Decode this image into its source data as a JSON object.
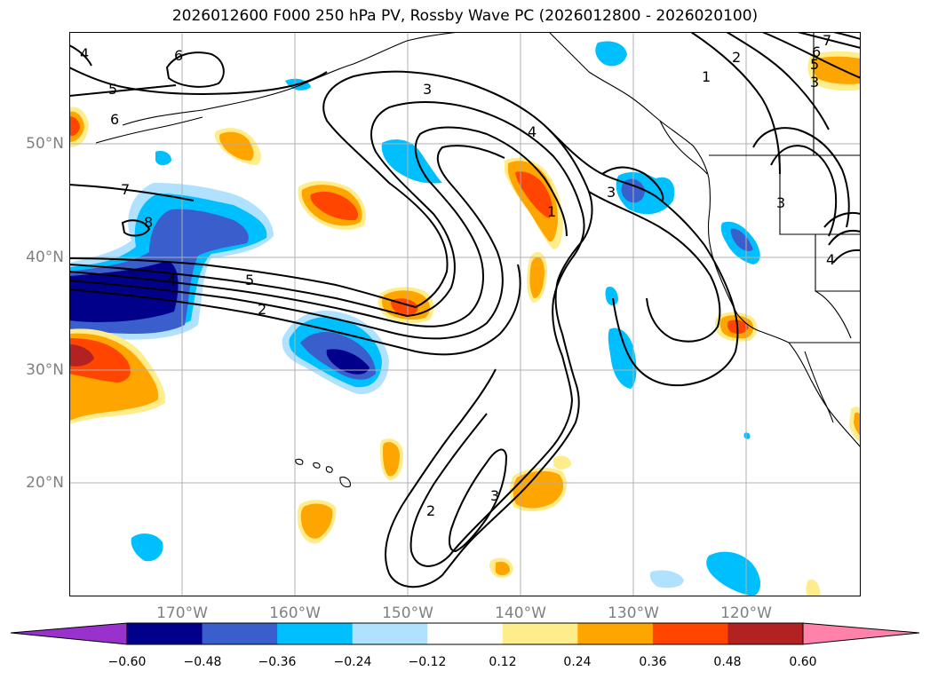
{
  "title": "2026012600 F000 250 hPa PV, Rossby Wave PC (2026012800 - 2026020100)",
  "lat_labels": [
    "50°N",
    "40°N",
    "30°N",
    "20°N"
  ],
  "lon_labels": [
    "170°W",
    "160°W",
    "150°W",
    "140°W",
    "130°W",
    "120°W"
  ],
  "contour_labels": [
    "4",
    "6",
    "5",
    "6",
    "7",
    "8",
    "5",
    "2",
    "3",
    "4",
    "1",
    "3",
    "2",
    "6",
    "7",
    "5",
    "3",
    "1",
    "3",
    "4",
    "2",
    "3",
    "4"
  ],
  "colorbar": {
    "ticks": [
      "−0.60",
      "−0.48",
      "−0.36",
      "−0.24",
      "−0.12",
      "0.12",
      "0.24",
      "0.36",
      "0.48",
      "0.60"
    ],
    "colors": [
      "#9932cc",
      "#00008b",
      "#3a5fcd",
      "#00bfff",
      "#b0e2ff",
      "#ffffff",
      "#ffec8b",
      "#ffa500",
      "#ff4500",
      "#b22222",
      "#ff82ab"
    ]
  },
  "colors": {
    "land_outline": "#000000",
    "gridline": "#b0b0b0",
    "axis_label": "#808080"
  }
}
